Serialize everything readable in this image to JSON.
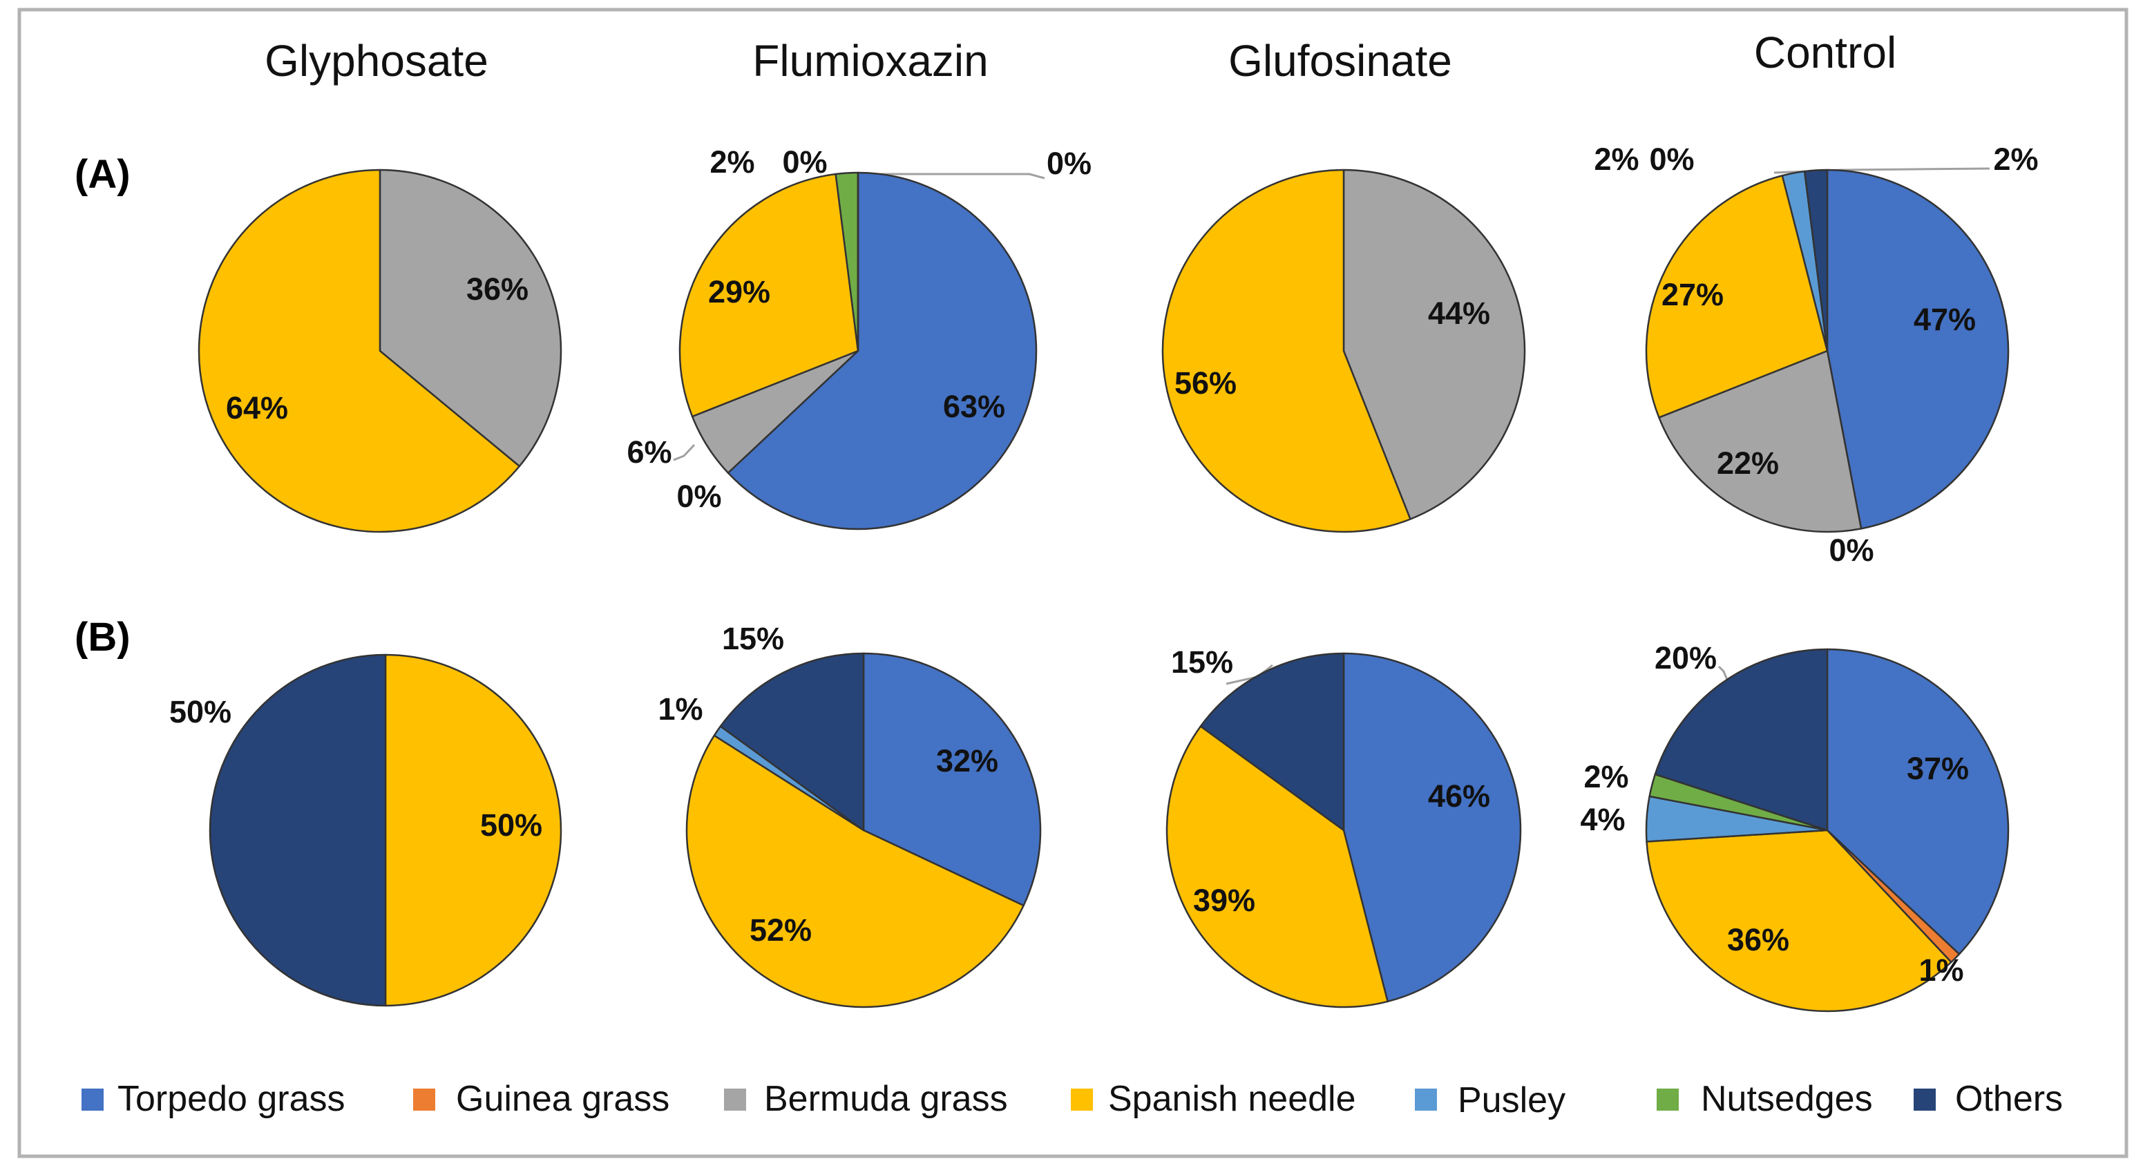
{
  "chart_data": {
    "type": "pie",
    "columns": [
      "Glyphosate",
      "Flumioxazin",
      "Glufosinate",
      "Control"
    ],
    "rows": [
      "(A)",
      "(B)"
    ],
    "categories": [
      "Torpedo grass",
      "Guinea grass",
      "Bermuda grass",
      "Spanish needle",
      "Pusley",
      "Nutsedges",
      "Others"
    ],
    "colors": {
      "Torpedo grass": "#4472C4",
      "Guinea grass": "#ED7D31",
      "Bermuda grass": "#A5A5A5",
      "Spanish needle": "#FFC000",
      "Pusley": "#5B9BD5",
      "Nutsedges": "#70AD47",
      "Others": "#264478"
    },
    "pies": [
      {
        "row": "(A)",
        "column": "Glyphosate",
        "slices": [
          {
            "category": "Bermuda grass",
            "value": 36,
            "label": "36%"
          },
          {
            "category": "Spanish needle",
            "value": 64,
            "label": "64%"
          }
        ]
      },
      {
        "row": "(A)",
        "column": "Flumioxazin",
        "slices": [
          {
            "category": "Torpedo grass",
            "value": 63,
            "label": "63%"
          },
          {
            "category": "Guinea grass",
            "value": 0,
            "label": "0%"
          },
          {
            "category": "Bermuda grass",
            "value": 6,
            "label": "6%"
          },
          {
            "category": "Spanish needle",
            "value": 29,
            "label": "29%"
          },
          {
            "category": "Nutsedges",
            "value": 2,
            "label": "2%"
          },
          {
            "category": "Pusley",
            "value": 0,
            "label": "0%"
          },
          {
            "category": "Others",
            "value": 0,
            "label": "0%"
          }
        ]
      },
      {
        "row": "(A)",
        "column": "Glufosinate",
        "slices": [
          {
            "category": "Bermuda grass",
            "value": 44,
            "label": "44%"
          },
          {
            "category": "Spanish needle",
            "value": 56,
            "label": "56%"
          }
        ]
      },
      {
        "row": "(A)",
        "column": "Control",
        "slices": [
          {
            "category": "Torpedo grass",
            "value": 47,
            "label": "47%"
          },
          {
            "category": "Guinea grass",
            "value": 0,
            "label": "0%"
          },
          {
            "category": "Bermuda grass",
            "value": 22,
            "label": "22%"
          },
          {
            "category": "Spanish needle",
            "value": 27,
            "label": "27%"
          },
          {
            "category": "Pusley",
            "value": 2,
            "label": "2%"
          },
          {
            "category": "Nutsedges",
            "value": 0,
            "label": "0%"
          },
          {
            "category": "Others",
            "value": 2,
            "label": "2%"
          }
        ]
      },
      {
        "row": "(B)",
        "column": "Glyphosate",
        "slices": [
          {
            "category": "Spanish needle",
            "value": 50,
            "label": "50%"
          },
          {
            "category": "Others",
            "value": 50,
            "label": "50%"
          }
        ]
      },
      {
        "row": "(B)",
        "column": "Flumioxazin",
        "slices": [
          {
            "category": "Torpedo grass",
            "value": 32,
            "label": "32%"
          },
          {
            "category": "Spanish needle",
            "value": 52,
            "label": "52%"
          },
          {
            "category": "Pusley",
            "value": 1,
            "label": "1%"
          },
          {
            "category": "Others",
            "value": 15,
            "label": "15%"
          }
        ]
      },
      {
        "row": "(B)",
        "column": "Glufosinate",
        "slices": [
          {
            "category": "Torpedo grass",
            "value": 46,
            "label": "46%"
          },
          {
            "category": "Spanish needle",
            "value": 39,
            "label": "39%"
          },
          {
            "category": "Others",
            "value": 15,
            "label": "15%"
          }
        ]
      },
      {
        "row": "(B)",
        "column": "Control",
        "slices": [
          {
            "category": "Torpedo grass",
            "value": 37,
            "label": "37%"
          },
          {
            "category": "Guinea grass",
            "value": 1,
            "label": "1%"
          },
          {
            "category": "Spanish needle",
            "value": 36,
            "label": "36%"
          },
          {
            "category": "Pusley",
            "value": 4,
            "label": "4%"
          },
          {
            "category": "Nutsedges",
            "value": 2,
            "label": "2%"
          },
          {
            "category": "Others",
            "value": 20,
            "label": "20%"
          }
        ]
      }
    ],
    "legend": {
      "position": "bottom",
      "entries": [
        "Torpedo grass",
        "Guinea grass",
        "Bermuda grass",
        "Spanish needle",
        "Pusley",
        "Nutsedges",
        "Others"
      ]
    }
  }
}
